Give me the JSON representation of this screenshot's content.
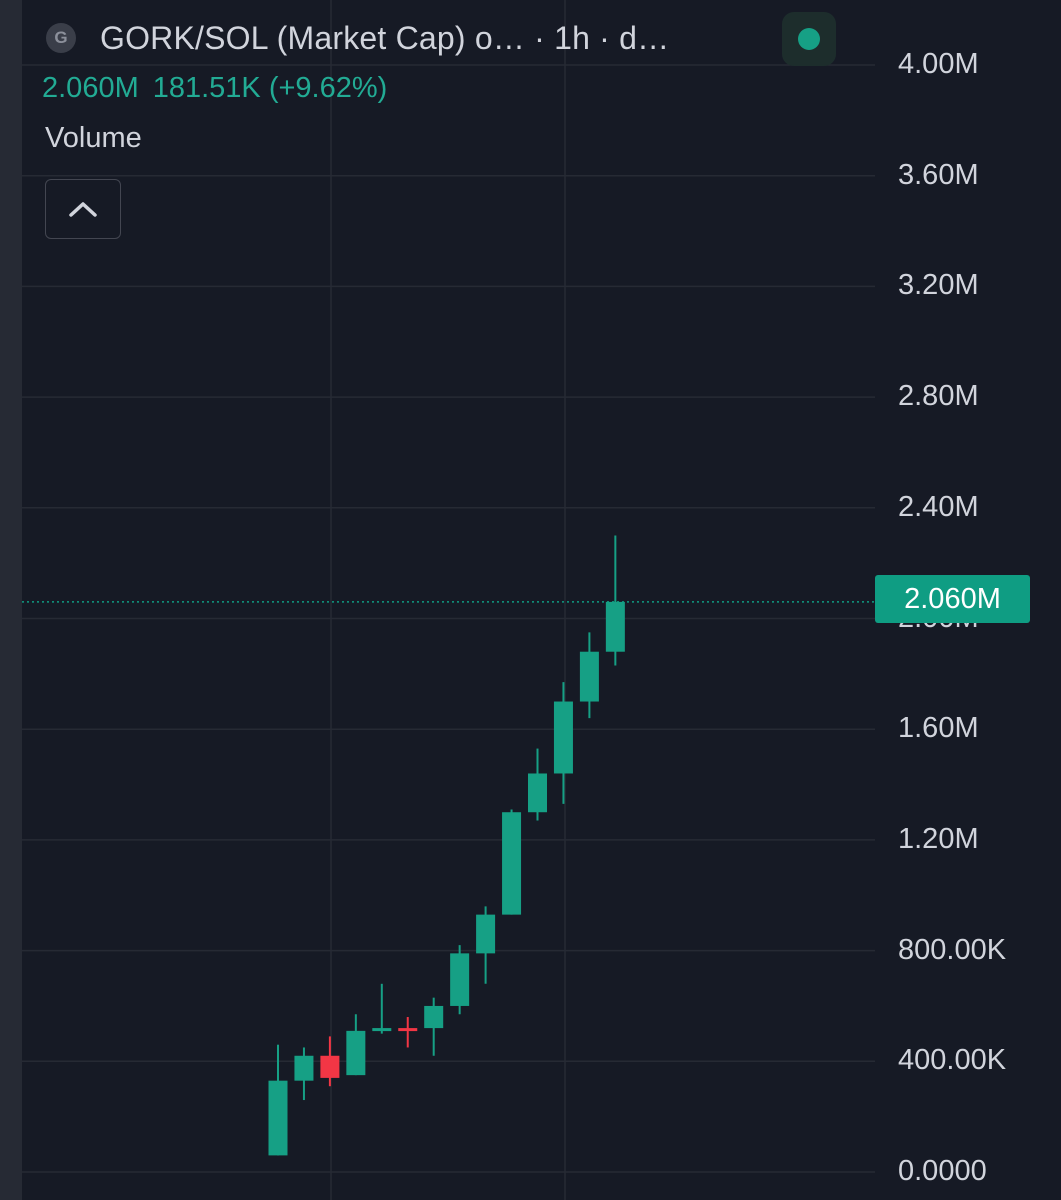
{
  "header": {
    "symbol_badge": "G",
    "title": "GORK/SOL (Market Cap) o… · 1h · d…",
    "status_color": "#16a085"
  },
  "legend": {
    "value": "2.060M",
    "change": "181.51K (+9.62%)",
    "volume_label": "Volume",
    "collapse_icon": "chevron-up-icon"
  },
  "last_price": {
    "label": "2.060M",
    "value": 2060000,
    "color": "#0f9d83"
  },
  "chart_data": {
    "type": "candlestick",
    "title": "",
    "xlabel": "",
    "ylabel": "",
    "ylim": [
      0,
      4000000
    ],
    "y_ticks": [
      {
        "value": 4000000,
        "label": "4.00M"
      },
      {
        "value": 3600000,
        "label": "3.60M"
      },
      {
        "value": 3200000,
        "label": "3.20M"
      },
      {
        "value": 2800000,
        "label": "2.80M"
      },
      {
        "value": 2400000,
        "label": "2.40M"
      },
      {
        "value": 2000000,
        "label": "2.00M"
      },
      {
        "value": 1600000,
        "label": "1.60M"
      },
      {
        "value": 1200000,
        "label": "1.20M"
      },
      {
        "value": 800000,
        "label": "800.00K"
      },
      {
        "value": 400000,
        "label": "400.00K"
      },
      {
        "value": 0,
        "label": "0.0000"
      }
    ],
    "grid": true,
    "up_color": "#16a085",
    "down_color": "#f23645",
    "candles": [
      {
        "o": 60000,
        "h": 460000,
        "l": 60000,
        "c": 330000
      },
      {
        "o": 330000,
        "h": 450000,
        "l": 260000,
        "c": 420000
      },
      {
        "o": 420000,
        "h": 490000,
        "l": 310000,
        "c": 340000
      },
      {
        "o": 350000,
        "h": 570000,
        "l": 350000,
        "c": 510000
      },
      {
        "o": 510000,
        "h": 680000,
        "l": 500000,
        "c": 520000
      },
      {
        "o": 520000,
        "h": 560000,
        "l": 450000,
        "c": 510000
      },
      {
        "o": 520000,
        "h": 630000,
        "l": 420000,
        "c": 600000
      },
      {
        "o": 600000,
        "h": 820000,
        "l": 570000,
        "c": 790000
      },
      {
        "o": 790000,
        "h": 960000,
        "l": 680000,
        "c": 930000
      },
      {
        "o": 930000,
        "h": 1310000,
        "l": 930000,
        "c": 1300000
      },
      {
        "o": 1300000,
        "h": 1530000,
        "l": 1270000,
        "c": 1440000
      },
      {
        "o": 1440000,
        "h": 1770000,
        "l": 1330000,
        "c": 1700000
      },
      {
        "o": 1700000,
        "h": 1950000,
        "l": 1640000,
        "c": 1880000
      },
      {
        "o": 1880000,
        "h": 2300000,
        "l": 1830000,
        "c": 2060000
      }
    ]
  }
}
